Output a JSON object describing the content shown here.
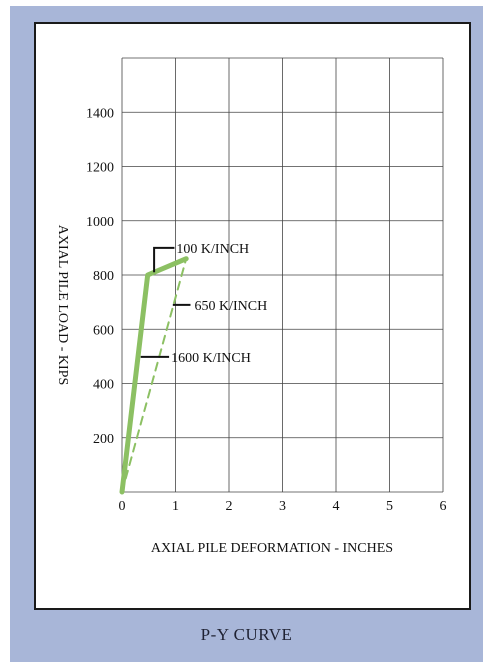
{
  "caption": "P-Y CURVE",
  "chart_data": {
    "type": "line",
    "title": "",
    "xlabel": "AXIAL PILE DEFORMATION - INCHES",
    "ylabel": "AXIAL PILE LOAD - KIPS",
    "xlim": [
      0,
      6
    ],
    "ylim": [
      0,
      1600
    ],
    "x_ticks": [
      "0",
      "1",
      "2",
      "3",
      "4",
      "5",
      "6"
    ],
    "y_ticks": [
      "200",
      "400",
      "600",
      "800",
      "1000",
      "1200",
      "1400"
    ],
    "grid": true,
    "series": [
      {
        "style": "solid-thick",
        "color": "#8cc063",
        "points": [
          [
            0,
            0
          ],
          [
            0.48,
            800
          ],
          [
            1.2,
            860
          ]
        ]
      },
      {
        "style": "dashed",
        "color": "#8cc063",
        "points": [
          [
            0,
            0
          ],
          [
            1.2,
            860
          ]
        ]
      }
    ],
    "annotations": [
      {
        "text": "100 K/INCH",
        "x": 0.6,
        "y": 860
      },
      {
        "text": "650 K/INCH",
        "x": 0.95,
        "y": 680
      },
      {
        "text": "1600 K/INCH",
        "x": 0.35,
        "y": 500
      }
    ]
  }
}
